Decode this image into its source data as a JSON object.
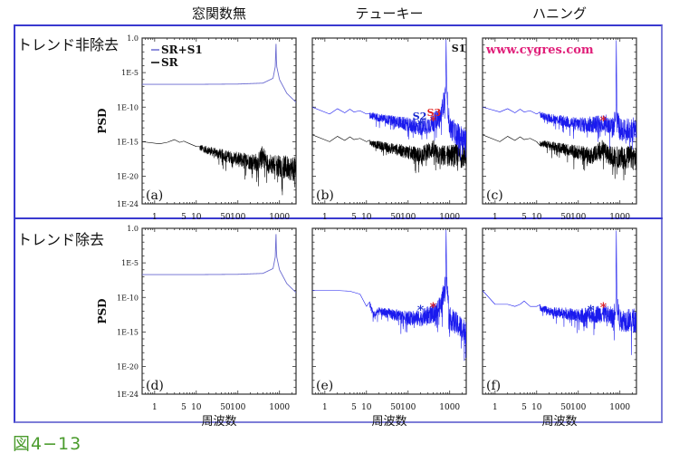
{
  "figure": {
    "caption": "図4−13",
    "column_titles": [
      "窓関数無",
      "テューキー",
      "ハニング"
    ],
    "row_labels": [
      "トレンド非除去",
      "トレンド除去"
    ],
    "watermark": "www.cygres.com",
    "colors": {
      "frame": "#3a3ad0",
      "sr_s1": "#1a1aee",
      "sr_s1_thin": "#6a6ad0",
      "sr": "#000000",
      "s2_marker": "#1a2ad0",
      "s3_marker": "#e02020",
      "watermark": "#e0207a",
      "caption": "#4a9b2c"
    }
  },
  "chart_data": [
    {
      "id": "a",
      "panel_label": "(a)",
      "type": "line",
      "window": "窓関数無",
      "detrend": false,
      "xscale": "log",
      "yscale": "log",
      "xlim": [
        0.5,
        2500
      ],
      "ylim": [
        1e-24,
        1.0
      ],
      "xticks": [
        "1",
        "5",
        "10",
        "50",
        "100",
        "1000"
      ],
      "yticks": [
        "1.0",
        "1E-5",
        "1E-10",
        "1E-15",
        "1E-20",
        "1E-24"
      ],
      "ylabel": "PSD",
      "xlabel": "",
      "legend": {
        "placement": "top-left",
        "entries": [
          "SR+S1",
          "SR"
        ]
      },
      "series": [
        {
          "name": "SR+S1",
          "style": "smooth",
          "x": [
            0.5,
            10,
            100,
            400,
            700,
            800,
            820,
            850,
            1000,
            1500,
            2500
          ],
          "y": [
            2e-07,
            2e-07,
            2.2e-07,
            3e-07,
            1.5e-06,
            0.0001,
            1.0,
            0.0001,
            1e-06,
            1e-08,
            5e-10
          ]
        },
        {
          "name": "SR",
          "style": "noisy",
          "x": [
            0.5,
            1.3,
            2,
            3,
            4,
            5,
            7,
            10,
            20,
            50,
            100,
            300,
            400,
            500,
            1000,
            2500
          ],
          "y": [
            1e-15,
            5e-16,
            8e-16,
            2e-15,
            8e-16,
            1.2e-15,
            5e-16,
            2e-16,
            5e-17,
            1e-17,
            3e-18,
            1e-18,
            1.5e-17,
            8e-19,
            3e-19,
            1e-19
          ]
        }
      ]
    },
    {
      "id": "b",
      "panel_label": "(b)",
      "type": "line",
      "window": "テューキー",
      "detrend": false,
      "xscale": "log",
      "yscale": "log",
      "xlim": [
        0.5,
        2500
      ],
      "ylim": [
        1e-24,
        1.0
      ],
      "xticks": [
        "1",
        "5",
        "10",
        "50",
        "100",
        "1000"
      ],
      "annotations": [
        {
          "text": "S1",
          "x": 820
        },
        {
          "text": "S2",
          "marker": "*",
          "x": 200
        },
        {
          "text": "S3",
          "marker": "*",
          "x": 400
        }
      ],
      "series": [
        {
          "name": "SR+S1",
          "style": "noisy",
          "x": [
            0.5,
            1.3,
            2,
            3,
            4,
            5,
            7,
            10,
            20,
            50,
            100,
            200,
            400,
            600,
            800,
            820,
            850,
            1000,
            2500
          ],
          "y": [
            1e-10,
            1e-11,
            6e-11,
            1.5e-11,
            5e-11,
            2e-11,
            3e-11,
            1e-11,
            3e-12,
            8e-13,
            3e-13,
            1e-13,
            5e-13,
            5e-12,
            1e-08,
            1.0,
            1e-08,
            1e-13,
            1e-15
          ]
        },
        {
          "name": "SR",
          "style": "noisy",
          "x": [
            0.5,
            1.3,
            2,
            3,
            4,
            5,
            7,
            10,
            20,
            50,
            100,
            200,
            400,
            500,
            1000,
            2500
          ],
          "y": [
            1e-14,
            1e-15,
            6e-15,
            1.5e-15,
            5e-15,
            2e-15,
            3e-15,
            1e-15,
            3e-16,
            8e-17,
            3e-17,
            1e-17,
            1e-16,
            1e-17,
            1e-17,
            1e-17
          ]
        }
      ]
    },
    {
      "id": "c",
      "panel_label": "(c)",
      "type": "line",
      "window": "ハニング",
      "detrend": false,
      "xscale": "log",
      "yscale": "log",
      "xlim": [
        0.5,
        2500
      ],
      "ylim": [
        1e-24,
        1.0
      ],
      "xticks": [
        "1",
        "5",
        "10",
        "50",
        "100",
        "1000"
      ],
      "annotations": [
        {
          "marker": "*",
          "x": 200,
          "color": "s2"
        },
        {
          "marker": "*",
          "x": 400,
          "color": "s3"
        }
      ],
      "series": [
        {
          "name": "SR+S1",
          "style": "noisy",
          "x": [
            0.5,
            1.3,
            2,
            3,
            4,
            5,
            7,
            10,
            20,
            50,
            100,
            200,
            400,
            700,
            800,
            820,
            850,
            1000,
            2500
          ],
          "y": [
            1e-10,
            2e-11,
            6e-11,
            1.5e-11,
            5e-11,
            2e-11,
            3e-11,
            1e-11,
            3e-12,
            8e-13,
            3e-13,
            3e-13,
            5e-13,
            1e-13,
            1e-11,
            1.0,
            1e-11,
            5e-14,
            5e-14
          ]
        },
        {
          "name": "SR",
          "style": "noisy",
          "x": [
            0.5,
            1.3,
            2,
            3,
            4,
            5,
            7,
            10,
            20,
            50,
            100,
            200,
            400,
            500,
            1000,
            2500
          ],
          "y": [
            1e-14,
            1e-15,
            6e-15,
            1.5e-15,
            5e-15,
            2e-15,
            3e-15,
            1e-15,
            3e-16,
            8e-17,
            3e-17,
            1e-17,
            1e-16,
            1e-17,
            5e-18,
            5e-18
          ]
        }
      ]
    },
    {
      "id": "d",
      "panel_label": "(d)",
      "type": "line",
      "window": "窓関数無",
      "detrend": true,
      "xscale": "log",
      "yscale": "log",
      "xlim": [
        0.5,
        2500
      ],
      "ylim": [
        1e-24,
        1.0
      ],
      "xticks": [
        "1",
        "5",
        "10",
        "50",
        "100",
        "1000"
      ],
      "yticks": [
        "1.0",
        "1E-5",
        "1E-10",
        "1E-15",
        "1E-20",
        "1E-24"
      ],
      "ylabel": "PSD",
      "xlabel": "周波数",
      "series": [
        {
          "name": "SR+S1",
          "style": "smooth",
          "x": [
            0.5,
            10,
            100,
            400,
            700,
            800,
            820,
            850,
            1000,
            1500,
            2500
          ],
          "y": [
            2e-07,
            2e-07,
            2.2e-07,
            3e-07,
            1.5e-06,
            0.0001,
            1.0,
            0.0001,
            1e-06,
            1e-08,
            5e-10
          ]
        }
      ]
    },
    {
      "id": "e",
      "panel_label": "(e)",
      "type": "line",
      "window": "テューキー",
      "detrend": true,
      "xscale": "log",
      "yscale": "log",
      "xlim": [
        0.5,
        2500
      ],
      "ylim": [
        1e-24,
        1.0
      ],
      "xticks": [
        "1",
        "5",
        "10",
        "50",
        "100",
        "1000"
      ],
      "xlabel": "周波数",
      "annotations": [
        {
          "marker": "*",
          "x": 200,
          "color": "s2"
        },
        {
          "marker": "*",
          "x": 400,
          "color": "s3"
        }
      ],
      "series": [
        {
          "name": "SR+S1",
          "style": "noisy",
          "x": [
            0.5,
            2,
            4,
            7,
            10,
            12,
            15,
            20,
            50,
            100,
            200,
            400,
            600,
            800,
            820,
            850,
            1000,
            2500
          ],
          "y": [
            1e-09,
            1e-09,
            8e-10,
            3e-10,
            5e-12,
            1e-11,
            3e-13,
            1e-12,
            3e-13,
            1e-13,
            1e-13,
            5e-13,
            5e-12,
            1e-08,
            1.0,
            1e-08,
            1e-13,
            1e-15
          ]
        }
      ]
    },
    {
      "id": "f",
      "panel_label": "(f)",
      "type": "line",
      "window": "ハニング",
      "detrend": true,
      "xscale": "log",
      "yscale": "log",
      "xlim": [
        0.5,
        2500
      ],
      "ylim": [
        1e-24,
        1.0
      ],
      "xticks": [
        "1",
        "5",
        "10",
        "50",
        "100",
        "1000"
      ],
      "xlabel": "周波数",
      "annotations": [
        {
          "marker": "*",
          "x": 200,
          "color": "s2"
        },
        {
          "marker": "*",
          "x": 400,
          "color": "s3"
        }
      ],
      "series": [
        {
          "name": "SR+S1",
          "style": "noisy",
          "x": [
            0.5,
            1.0,
            1.3,
            2,
            3,
            4,
            5,
            7,
            10,
            20,
            50,
            100,
            200,
            400,
            700,
            800,
            820,
            850,
            1000,
            2500
          ],
          "y": [
            1e-09,
            1e-11,
            1e-11,
            1e-11,
            5e-12,
            1e-11,
            3e-11,
            5e-12,
            5e-12,
            1e-12,
            5e-13,
            2e-13,
            3e-13,
            5e-13,
            1e-13,
            1e-11,
            1.0,
            1e-11,
            5e-14,
            5e-14
          ]
        }
      ]
    }
  ]
}
